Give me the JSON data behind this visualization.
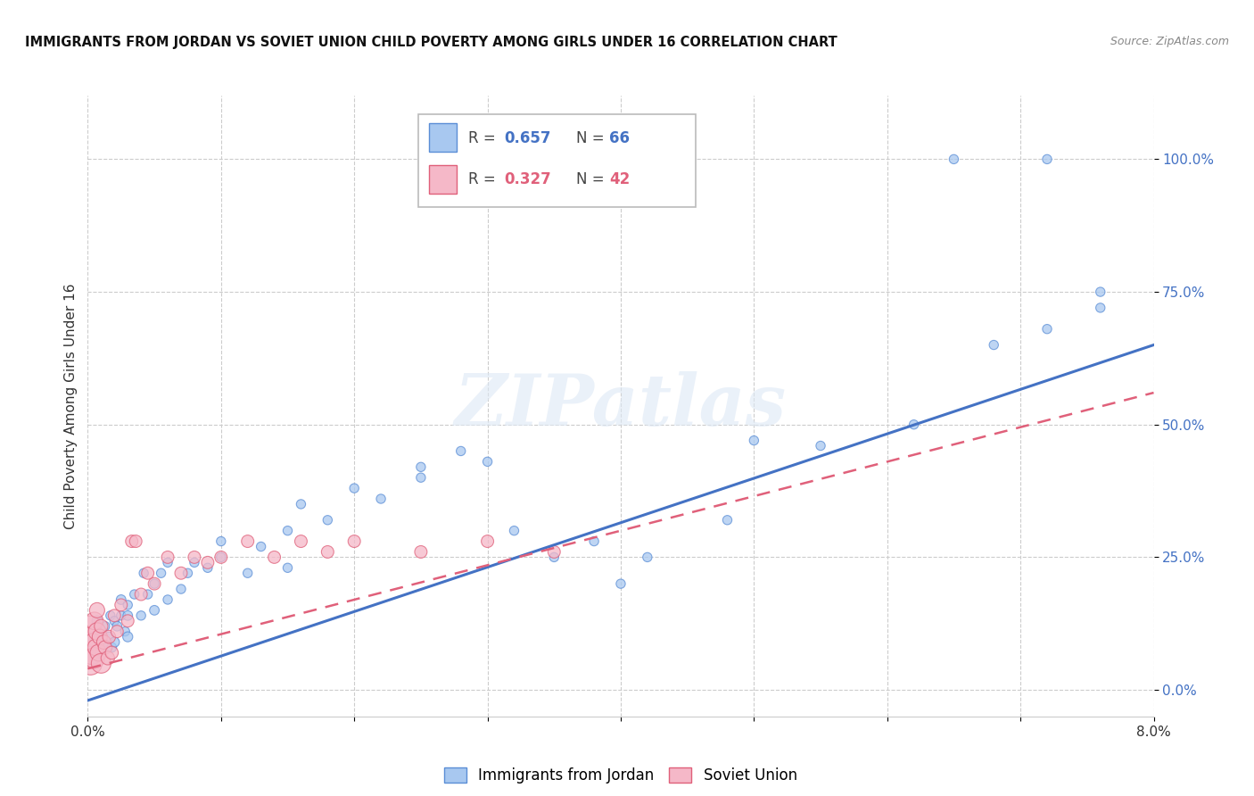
{
  "title": "IMMIGRANTS FROM JORDAN VS SOVIET UNION CHILD POVERTY AMONG GIRLS UNDER 16 CORRELATION CHART",
  "source": "Source: ZipAtlas.com",
  "ylabel": "Child Poverty Among Girls Under 16",
  "xlim": [
    0.0,
    0.08
  ],
  "ylim": [
    -0.05,
    1.12
  ],
  "yticks": [
    0.0,
    0.25,
    0.5,
    0.75,
    1.0
  ],
  "ytick_labels": [
    "0.0%",
    "25.0%",
    "50.0%",
    "75.0%",
    "100.0%"
  ],
  "xticks": [
    0.0,
    0.01,
    0.02,
    0.03,
    0.04,
    0.05,
    0.06,
    0.07,
    0.08
  ],
  "xtick_labels": [
    "0.0%",
    "",
    "",
    "",
    "",
    "",
    "",
    "",
    "8.0%"
  ],
  "jordan_color": "#a8c8f0",
  "jordan_edge_color": "#5b8ed6",
  "jordan_line_color": "#4472c4",
  "soviet_color": "#f5b8c8",
  "soviet_edge_color": "#e0607a",
  "soviet_line_color": "#e0607a",
  "jordan_R": 0.657,
  "jordan_N": 66,
  "soviet_R": 0.327,
  "soviet_N": 42,
  "watermark": "ZIPatlas",
  "jordan_line_x0": 0.0,
  "jordan_line_y0": -0.02,
  "jordan_line_x1": 0.08,
  "jordan_line_y1": 0.65,
  "soviet_line_x0": 0.0,
  "soviet_line_y0": 0.04,
  "soviet_line_x1": 0.08,
  "soviet_line_y1": 0.56,
  "jordan_x": [
    0.0003,
    0.0004,
    0.0005,
    0.0006,
    0.0007,
    0.0008,
    0.0008,
    0.001,
    0.001,
    0.0012,
    0.0013,
    0.0015,
    0.0016,
    0.0017,
    0.0018,
    0.002,
    0.002,
    0.0022,
    0.0025,
    0.0025,
    0.0028,
    0.003,
    0.003,
    0.003,
    0.0035,
    0.004,
    0.0042,
    0.0045,
    0.005,
    0.005,
    0.0055,
    0.006,
    0.006,
    0.007,
    0.0075,
    0.008,
    0.009,
    0.01,
    0.01,
    0.012,
    0.013,
    0.015,
    0.015,
    0.016,
    0.018,
    0.02,
    0.022,
    0.025,
    0.025,
    0.028,
    0.03,
    0.032,
    0.035,
    0.038,
    0.04,
    0.042,
    0.048,
    0.05,
    0.055,
    0.062,
    0.065,
    0.068,
    0.072,
    0.072,
    0.076,
    0.076
  ],
  "jordan_y": [
    0.06,
    0.1,
    0.07,
    0.09,
    0.13,
    0.08,
    0.12,
    0.07,
    0.1,
    0.09,
    0.12,
    0.08,
    0.1,
    0.14,
    0.08,
    0.09,
    0.13,
    0.12,
    0.14,
    0.17,
    0.11,
    0.1,
    0.14,
    0.16,
    0.18,
    0.14,
    0.22,
    0.18,
    0.15,
    0.2,
    0.22,
    0.17,
    0.24,
    0.19,
    0.22,
    0.24,
    0.23,
    0.25,
    0.28,
    0.22,
    0.27,
    0.3,
    0.23,
    0.35,
    0.32,
    0.38,
    0.36,
    0.4,
    0.42,
    0.45,
    0.43,
    0.3,
    0.25,
    0.28,
    0.2,
    0.25,
    0.32,
    0.47,
    0.46,
    0.5,
    1.0,
    0.65,
    1.0,
    0.68,
    0.72,
    0.75
  ],
  "jordan_sizes": [
    120,
    80,
    100,
    90,
    70,
    80,
    60,
    70,
    65,
    60,
    55,
    65,
    60,
    55,
    60,
    65,
    55,
    60,
    55,
    60,
    55,
    65,
    60,
    55,
    55,
    55,
    55,
    55,
    60,
    55,
    55,
    55,
    55,
    55,
    55,
    55,
    55,
    55,
    55,
    55,
    55,
    55,
    55,
    55,
    55,
    55,
    55,
    55,
    55,
    55,
    55,
    55,
    55,
    55,
    55,
    55,
    55,
    55,
    55,
    55,
    55,
    55,
    55,
    55,
    55,
    55
  ],
  "soviet_x": [
    0.0001,
    0.0002,
    0.0002,
    0.0003,
    0.0003,
    0.0004,
    0.0005,
    0.0005,
    0.0006,
    0.0007,
    0.0007,
    0.0008,
    0.0009,
    0.001,
    0.001,
    0.0012,
    0.0013,
    0.0015,
    0.0016,
    0.0018,
    0.002,
    0.0022,
    0.0025,
    0.003,
    0.0033,
    0.0036,
    0.004,
    0.0045,
    0.005,
    0.006,
    0.007,
    0.008,
    0.009,
    0.01,
    0.012,
    0.014,
    0.016,
    0.018,
    0.02,
    0.025,
    0.03,
    0.035
  ],
  "soviet_y": [
    0.08,
    0.05,
    0.12,
    0.07,
    0.1,
    0.09,
    0.06,
    0.13,
    0.08,
    0.11,
    0.15,
    0.07,
    0.1,
    0.05,
    0.12,
    0.09,
    0.08,
    0.06,
    0.1,
    0.07,
    0.14,
    0.11,
    0.16,
    0.13,
    0.28,
    0.28,
    0.18,
    0.22,
    0.2,
    0.25,
    0.22,
    0.25,
    0.24,
    0.25,
    0.28,
    0.25,
    0.28,
    0.26,
    0.28,
    0.26,
    0.28,
    0.26
  ],
  "soviet_sizes": [
    500,
    350,
    280,
    350,
    250,
    200,
    280,
    200,
    180,
    200,
    150,
    180,
    150,
    250,
    120,
    130,
    120,
    120,
    110,
    110,
    100,
    100,
    100,
    100,
    100,
    100,
    100,
    100,
    100,
    100,
    100,
    100,
    100,
    100,
    100,
    100,
    100,
    100,
    100,
    100,
    100,
    100
  ]
}
